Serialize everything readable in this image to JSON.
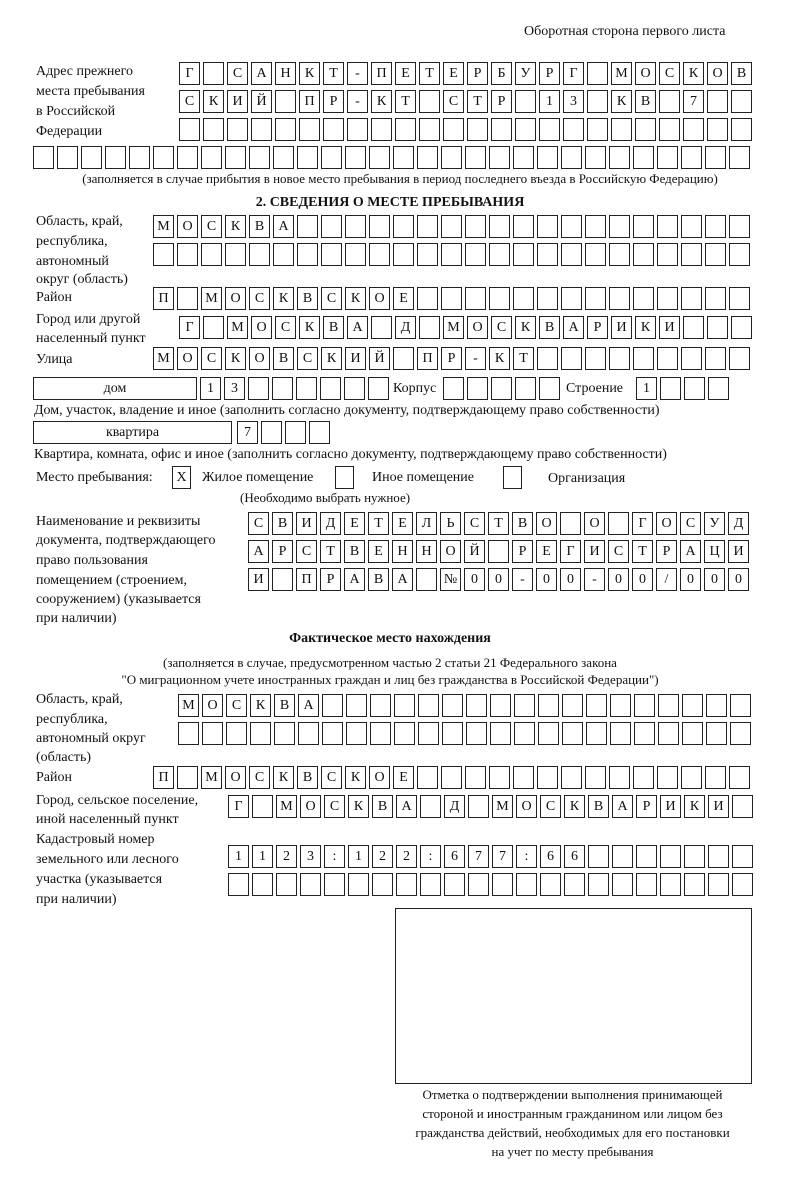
{
  "header": {
    "side_title": "Оборотная сторона первого листа"
  },
  "previous_address": {
    "label": [
      "Адрес прежнего",
      "места пребывания",
      "в Российской",
      "Федерации"
    ],
    "rows": [
      [
        "Г",
        "",
        "С",
        "А",
        "Н",
        "К",
        "Т",
        "-",
        "П",
        "Е",
        "Т",
        "Е",
        "Р",
        "Б",
        "У",
        "Р",
        "Г",
        "",
        "М",
        "О",
        "С",
        "К",
        "О",
        "В"
      ],
      [
        "С",
        "К",
        "И",
        "Й",
        "",
        "П",
        "Р",
        "-",
        "К",
        "Т",
        "",
        "С",
        "Т",
        "Р",
        "",
        "1",
        "3",
        "",
        "К",
        "В",
        "",
        "7",
        "",
        ""
      ],
      [
        "",
        "",
        "",
        "",
        "",
        "",
        "",
        "",
        "",
        "",
        "",
        "",
        "",
        "",
        "",
        "",
        "",
        "",
        "",
        "",
        "",
        "",
        "",
        ""
      ],
      [
        "",
        "",
        "",
        "",
        "",
        "",
        "",
        "",
        "",
        "",
        "",
        "",
        "",
        "",
        "",
        "",
        "",
        "",
        "",
        "",
        "",
        "",
        "",
        "",
        "",
        "",
        "",
        "",
        "",
        ""
      ]
    ],
    "note": "(заполняется в случае прибытия в новое место пребывания в период последнего въезда в Российскую Федерацию)"
  },
  "section2": {
    "title": "2. СВЕДЕНИЯ О МЕСТЕ ПРЕБЫВАНИЯ",
    "region_label": [
      "Область, край,",
      "республика,",
      "автономный",
      "округ (область)"
    ],
    "region_rows": [
      [
        "М",
        "О",
        "С",
        "К",
        "В",
        "А",
        "",
        "",
        "",
        "",
        "",
        "",
        "",
        "",
        "",
        "",
        "",
        "",
        "",
        "",
        "",
        "",
        "",
        "",
        ""
      ],
      [
        "",
        "",
        "",
        "",
        "",
        "",
        "",
        "",
        "",
        "",
        "",
        "",
        "",
        "",
        "",
        "",
        "",
        "",
        "",
        "",
        "",
        "",
        "",
        "",
        ""
      ]
    ],
    "district_label": "Район",
    "district_row": [
      "П",
      "",
      "М",
      "О",
      "С",
      "К",
      "В",
      "С",
      "К",
      "О",
      "Е",
      "",
      "",
      "",
      "",
      "",
      "",
      "",
      "",
      "",
      "",
      "",
      "",
      "",
      ""
    ],
    "city_label": [
      "Город или другой",
      "населенный пункт"
    ],
    "city_row": [
      "Г",
      "",
      "М",
      "О",
      "С",
      "К",
      "В",
      "А",
      "",
      "Д",
      "",
      "М",
      "О",
      "С",
      "К",
      "В",
      "А",
      "Р",
      "И",
      "К",
      "И",
      "",
      "",
      ""
    ],
    "street_label": "Улица",
    "street_row": [
      "М",
      "О",
      "С",
      "К",
      "О",
      "В",
      "С",
      "К",
      "И",
      "Й",
      "",
      "П",
      "Р",
      "-",
      "К",
      "Т",
      "",
      "",
      "",
      "",
      "",
      "",
      "",
      "",
      ""
    ],
    "house_type": "дом",
    "house_row": [
      "1",
      "3",
      "",
      "",
      "",
      "",
      "",
      ""
    ],
    "building_label": "Корпус",
    "building_row": [
      "",
      "",
      "",
      "",
      ""
    ],
    "structure_label": "Строение",
    "structure_row": [
      "1",
      "",
      "",
      ""
    ],
    "house_note": "Дом, участок, владение и иное (заполнить согласно документу, подтверждающему право собственности)",
    "apartment_type": "квартира",
    "apartment_row": [
      "7",
      "",
      "",
      ""
    ],
    "apartment_note": "Квартира, комната, офис и иное (заполнить согласно документу, подтверждающему право собственности)",
    "stay_place_label": "Место пребывания:",
    "options": [
      {
        "label": "Жилое помещение",
        "mark": "X"
      },
      {
        "label": "Иное помещение",
        "mark": ""
      },
      {
        "label": "Организация",
        "mark": ""
      }
    ],
    "options_note": "(Необходимо выбрать нужное)",
    "doc_label": [
      "Наименование и реквизиты",
      "документа, подтверждающего",
      "право пользования",
      "помещением (строением,",
      "сооружением) (указывается",
      "при наличии)"
    ],
    "doc_rows": [
      [
        "С",
        "В",
        "И",
        "Д",
        "Е",
        "Т",
        "Е",
        "Л",
        "Ь",
        "С",
        "Т",
        "В",
        "О",
        "",
        "О",
        "",
        "Г",
        "О",
        "С",
        "У",
        "Д"
      ],
      [
        "А",
        "Р",
        "С",
        "Т",
        "В",
        "Е",
        "Н",
        "Н",
        "О",
        "Й",
        "",
        "Р",
        "Е",
        "Г",
        "И",
        "С",
        "Т",
        "Р",
        "А",
        "Ц",
        "И"
      ],
      [
        "И",
        "",
        "П",
        "Р",
        "А",
        "В",
        "А",
        "",
        "№",
        "0",
        "0",
        "-",
        "0",
        "0",
        "-",
        "0",
        "0",
        "/",
        "0",
        "0",
        "0"
      ]
    ]
  },
  "actual": {
    "title": "Фактическое место нахождения",
    "note": [
      "(заполняется в случае, предусмотренном частью 2 статьи 21 Федерального закона",
      "\"О миграционном учете иностранных граждан и лиц без гражданства в Российской Федерации\")"
    ],
    "region_label": [
      "Область, край,",
      "республика,",
      "автономный округ",
      "(область)"
    ],
    "region_rows": [
      [
        "М",
        "О",
        "С",
        "К",
        "В",
        "А",
        "",
        "",
        "",
        "",
        "",
        "",
        "",
        "",
        "",
        "",
        "",
        "",
        "",
        "",
        "",
        "",
        "",
        ""
      ],
      [
        "",
        "",
        "",
        "",
        "",
        "",
        "",
        "",
        "",
        "",
        "",
        "",
        "",
        "",
        "",
        "",
        "",
        "",
        "",
        "",
        "",
        "",
        "",
        ""
      ]
    ],
    "district_label": "Район",
    "district_row": [
      "П",
      "",
      "М",
      "О",
      "С",
      "К",
      "В",
      "С",
      "К",
      "О",
      "Е",
      "",
      "",
      "",
      "",
      "",
      "",
      "",
      "",
      "",
      "",
      "",
      "",
      "",
      ""
    ],
    "city_label": [
      "Город, сельское поселение,",
      "иной населенный пункт"
    ],
    "city_row": [
      "Г",
      "",
      "М",
      "О",
      "С",
      "К",
      "В",
      "А",
      "",
      "Д",
      "",
      "М",
      "О",
      "С",
      "К",
      "В",
      "А",
      "Р",
      "И",
      "К",
      "И",
      ""
    ],
    "cadastre_label": [
      "Кадастровый номер",
      "земельного или лесного",
      "участка (указывается",
      "при наличии)"
    ],
    "cadastre_rows": [
      [
        "1",
        "1",
        "2",
        "3",
        ":",
        "1",
        "2",
        "2",
        ":",
        "6",
        "7",
        "7",
        ":",
        "6",
        "6",
        "",
        "",
        "",
        "",
        "",
        "",
        ""
      ],
      [
        "",
        "",
        "",
        "",
        "",
        "",
        "",
        "",
        "",
        "",
        "",
        "",
        "",
        "",
        "",
        "",
        "",
        "",
        "",
        "",
        "",
        ""
      ]
    ]
  },
  "stamp": {
    "caption": [
      "Отметка о подтверждении выполнения принимающей",
      "стороной и иностранным гражданином или лицом без",
      "гражданства действий, необходимых для его постановки",
      "на учет по месту пребывания"
    ]
  }
}
